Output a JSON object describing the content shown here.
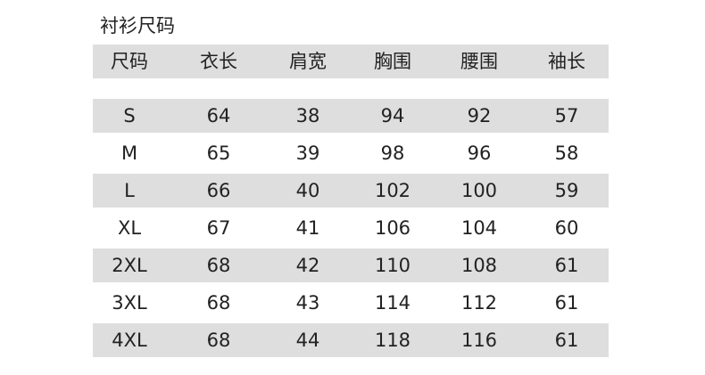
{
  "title": "衬衫尺码",
  "headers": [
    "尺码",
    "衣长",
    "肩宽",
    "胸围",
    "腰围",
    "袖长"
  ],
  "rows": [
    [
      "S",
      "64",
      "38",
      "94",
      "92",
      "57"
    ],
    [
      "M",
      "65",
      "39",
      "98",
      "96",
      "58"
    ],
    [
      "L",
      "66",
      "40",
      "102",
      "100",
      "59"
    ],
    [
      "XL",
      "67",
      "41",
      "106",
      "104",
      "60"
    ],
    [
      "2XL",
      "68",
      "42",
      "110",
      "108",
      "61"
    ],
    [
      "3XL",
      "68",
      "43",
      "114",
      "112",
      "61"
    ],
    [
      "4XL",
      "68",
      "44",
      "118",
      "116",
      "61"
    ]
  ],
  "colors": {
    "band": "#dedede",
    "text": "#222222"
  }
}
